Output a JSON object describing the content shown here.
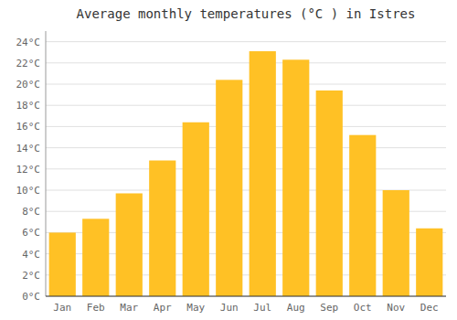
{
  "chart_data": {
    "type": "bar",
    "title": "Average monthly temperatures (°C ) in Istres",
    "categories": [
      "Jan",
      "Feb",
      "Mar",
      "Apr",
      "May",
      "Jun",
      "Jul",
      "Aug",
      "Sep",
      "Oct",
      "Nov",
      "Dec"
    ],
    "values": [
      6.0,
      7.3,
      9.7,
      12.8,
      16.4,
      20.4,
      23.1,
      22.3,
      19.4,
      15.2,
      10.0,
      6.4
    ],
    "color": "#FFC125",
    "ylim": [
      0,
      25
    ],
    "yticks": [
      {
        "value": 0,
        "label": "0°C"
      },
      {
        "value": 2,
        "label": "2°C"
      },
      {
        "value": 4,
        "label": "4°C"
      },
      {
        "value": 6,
        "label": "6°C"
      },
      {
        "value": 8,
        "label": "8°C"
      },
      {
        "value": 10,
        "label": "10°C"
      },
      {
        "value": 12,
        "label": "12°C"
      },
      {
        "value": 14,
        "label": "14°C"
      },
      {
        "value": 16,
        "label": "16°C"
      },
      {
        "value": 18,
        "label": "18°C"
      },
      {
        "value": 20,
        "label": "20°C"
      },
      {
        "value": 22,
        "label": "22°C"
      },
      {
        "value": 24,
        "label": "24°C"
      }
    ],
    "grid": true
  }
}
